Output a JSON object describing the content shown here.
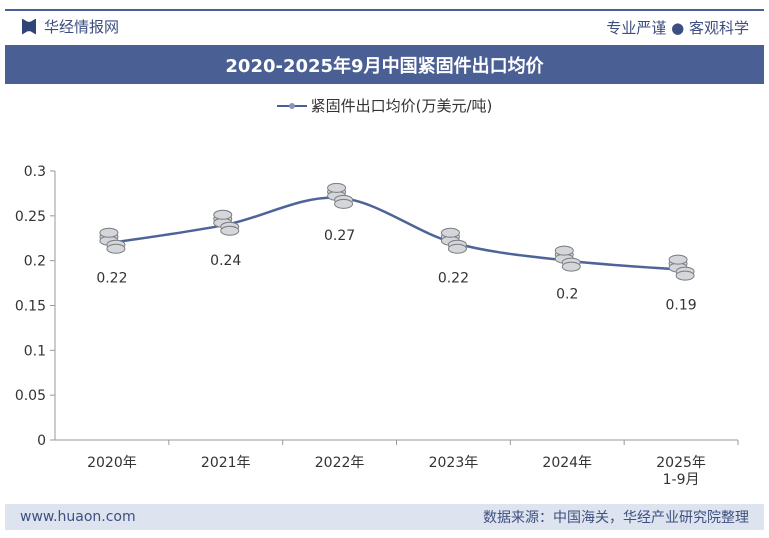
{
  "header": {
    "brand": "华经情报网",
    "slogan": "专业严谨 ● 客观科学",
    "title": "2020-2025年9月中国紧固件出口均价"
  },
  "footer": {
    "website": "www.huaon.com",
    "source": "数据来源：中国海关，华经产业研究院整理"
  },
  "colors": {
    "accent": "#4a5f94",
    "line": "#4e6398"
  },
  "chart_data": {
    "type": "line",
    "title": "2020-2025年9月中国紧固件出口均价",
    "categories": [
      "2020年",
      "2021年",
      "2022年",
      "2023年",
      "2024年",
      "2025年\n1-9月"
    ],
    "series": [
      {
        "name": "紧固件出口均价(万美元/吨)",
        "values": [
          0.22,
          0.24,
          0.27,
          0.22,
          0.2,
          0.19
        ]
      }
    ],
    "data_labels": [
      "0.22",
      "0.24",
      "0.27",
      "0.22",
      "0.2",
      "0.19"
    ],
    "yticks": [
      "0",
      "0.05",
      "0.1",
      "0.15",
      "0.2",
      "0.25",
      "0.3"
    ],
    "ylim": [
      0,
      0.3
    ],
    "grid": false,
    "legend": "top",
    "marker": "coin-stack-icon"
  }
}
